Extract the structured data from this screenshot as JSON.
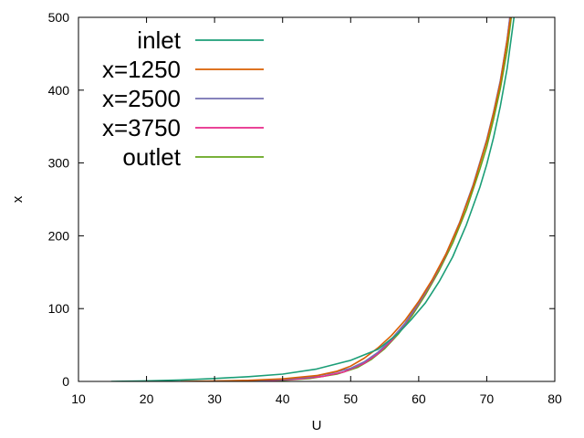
{
  "chart_data": {
    "type": "line",
    "title": "",
    "xlabel": "U",
    "ylabel": "x",
    "xlim": [
      10,
      80
    ],
    "ylim": [
      0,
      500
    ],
    "xticks": [
      10,
      20,
      30,
      40,
      50,
      60,
      70,
      80
    ],
    "yticks": [
      0,
      100,
      200,
      300,
      400,
      500
    ],
    "grid": false,
    "legend_position": "top-left",
    "series": [
      {
        "name": "inlet",
        "color": "#1b9e77",
        "points": [
          [
            14.8,
            0
          ],
          [
            20,
            0.8
          ],
          [
            25,
            2
          ],
          [
            30,
            4
          ],
          [
            35,
            6.5
          ],
          [
            40,
            10
          ],
          [
            45,
            17
          ],
          [
            50,
            29
          ],
          [
            54,
            44
          ],
          [
            57,
            66
          ],
          [
            59,
            86
          ],
          [
            61,
            108
          ],
          [
            63,
            137
          ],
          [
            65,
            171
          ],
          [
            67,
            215
          ],
          [
            69,
            267
          ],
          [
            70,
            298
          ],
          [
            71,
            335
          ],
          [
            72,
            378
          ],
          [
            73,
            430
          ],
          [
            74,
            500
          ]
        ]
      },
      {
        "name": "x=1250",
        "color": "#d95f02",
        "points": [
          [
            25,
            0
          ],
          [
            30,
            0.6
          ],
          [
            35,
            1.5
          ],
          [
            40,
            3.5
          ],
          [
            45,
            8
          ],
          [
            48,
            14
          ],
          [
            50,
            21
          ],
          [
            52,
            32
          ],
          [
            54,
            46
          ],
          [
            56,
            63
          ],
          [
            58,
            84
          ],
          [
            60,
            110
          ],
          [
            62,
            140
          ],
          [
            64,
            175
          ],
          [
            66,
            217
          ],
          [
            68,
            268
          ],
          [
            70,
            330
          ],
          [
            71,
            368
          ],
          [
            72,
            410
          ],
          [
            73,
            468
          ],
          [
            73.5,
            500
          ]
        ]
      },
      {
        "name": "x=2500",
        "color": "#7570b3",
        "points": [
          [
            28,
            0
          ],
          [
            32,
            0.5
          ],
          [
            36,
            1.2
          ],
          [
            40,
            2.8
          ],
          [
            44,
            6
          ],
          [
            47,
            11
          ],
          [
            50,
            18
          ],
          [
            52,
            27
          ],
          [
            54,
            40
          ],
          [
            56,
            58
          ],
          [
            58,
            80
          ],
          [
            60,
            108
          ],
          [
            62,
            139
          ],
          [
            64,
            175
          ],
          [
            66,
            218
          ],
          [
            68,
            270
          ],
          [
            70,
            332
          ],
          [
            71,
            370
          ],
          [
            72,
            413
          ],
          [
            73,
            470
          ],
          [
            73.4,
            500
          ]
        ]
      },
      {
        "name": "x=3750",
        "color": "#e7298a",
        "points": [
          [
            30,
            0
          ],
          [
            34,
            0.5
          ],
          [
            38,
            1.2
          ],
          [
            42,
            3
          ],
          [
            46,
            7
          ],
          [
            49,
            13
          ],
          [
            52,
            25
          ],
          [
            54,
            38
          ],
          [
            56,
            56
          ],
          [
            58,
            79
          ],
          [
            60,
            107
          ],
          [
            62,
            138
          ],
          [
            64,
            174
          ],
          [
            66,
            217
          ],
          [
            68,
            269
          ],
          [
            70,
            331
          ],
          [
            71,
            369
          ],
          [
            72,
            412
          ],
          [
            73,
            469
          ],
          [
            73.4,
            500
          ]
        ]
      },
      {
        "name": "outlet",
        "color": "#66a61e",
        "points": [
          [
            32,
            0
          ],
          [
            36,
            0.5
          ],
          [
            40,
            1.5
          ],
          [
            44,
            4
          ],
          [
            48,
            10
          ],
          [
            51,
            19
          ],
          [
            53,
            30
          ],
          [
            55,
            45
          ],
          [
            57,
            65
          ],
          [
            59,
            90
          ],
          [
            61,
            119
          ],
          [
            63,
            152
          ],
          [
            65,
            190
          ],
          [
            67,
            236
          ],
          [
            69,
            292
          ],
          [
            70,
            322
          ],
          [
            71,
            360
          ],
          [
            72,
            402
          ],
          [
            73,
            455
          ],
          [
            73.6,
            500
          ]
        ]
      }
    ]
  }
}
